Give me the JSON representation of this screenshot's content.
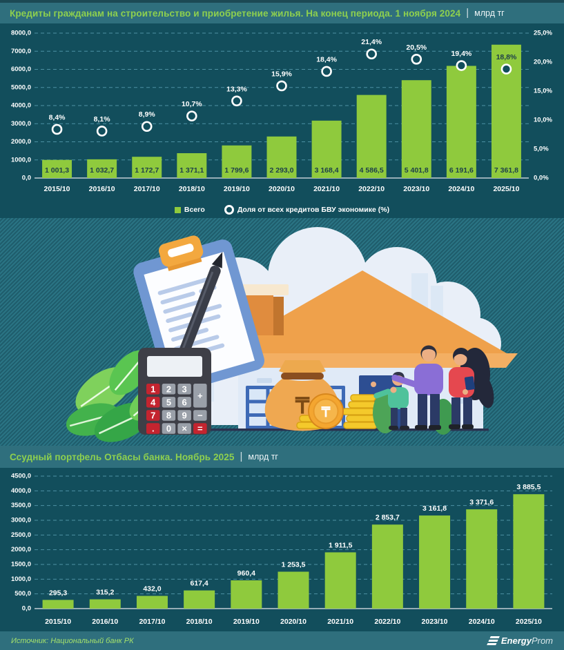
{
  "header": {
    "title": "Кредиты гражданам на строительство и приобретение жилья. На конец периода. 1 ноября 2024",
    "separator": "|",
    "unit": "млрд тг"
  },
  "section2": {
    "title": "Ссудный портфель Отбасы банка. Ноябрь 2025",
    "separator": "|",
    "unit": "млрд тг"
  },
  "legend": {
    "bars": "Всего",
    "markers": "Доля от всех кредитов БВУ экономике (%)"
  },
  "footer": {
    "source": "Источник: Национальный банк РК",
    "brand_bold": "Energy",
    "brand_light": "Prom"
  },
  "colors": {
    "bar": "#8fca3d",
    "bar_label_dark": "#1c3e4a",
    "label_white": "#ffffff",
    "grid": "#4d91a3",
    "axis_line": "#c3ced3",
    "marker_fill": "#124e5c",
    "marker_stroke": "#ffffff",
    "background": "#124e5c",
    "title_green": "#8ed04e"
  },
  "chart_data": [
    {
      "type": "bar",
      "title": "Кредиты гражданам на строительство и приобретение жилья. На конец периода. 1 ноября 2024, млрд тг",
      "categories": [
        "2015/10",
        "2016/10",
        "2017/10",
        "2018/10",
        "2019/10",
        "2020/10",
        "2021/10",
        "2022/10",
        "2023/10",
        "2024/10",
        "2025/10"
      ],
      "series": [
        {
          "name": "Всего",
          "type": "bar",
          "values": [
            1001.3,
            1032.7,
            1172.7,
            1371.1,
            1799.6,
            2293.0,
            3168.4,
            4586.5,
            5401.8,
            6191.6,
            7361.8
          ],
          "labels": [
            "1 001,3",
            "1 032,7",
            "1 172,7",
            "1 371,1",
            "1 799,6",
            "2 293,0",
            "3 168,4",
            "4 586,5",
            "5 401,8",
            "6 191,6",
            "7 361,8"
          ]
        },
        {
          "name": "Доля от всех кредитов БВУ экономике (%)",
          "type": "scatter",
          "values": [
            8.4,
            8.1,
            8.9,
            10.7,
            13.3,
            15.9,
            18.4,
            21.4,
            20.5,
            19.4,
            18.8
          ],
          "labels": [
            "8,4%",
            "8,1%",
            "8,9%",
            "10,7%",
            "13,3%",
            "15,9%",
            "18,4%",
            "21,4%",
            "20,5%",
            "19,4%",
            "18,8%"
          ]
        }
      ],
      "y_left": {
        "min": 0,
        "max": 8000,
        "step": 1000,
        "suffix": ""
      },
      "y_right": {
        "min": 0,
        "max": 25,
        "step": 5,
        "suffix": "%"
      },
      "grid": true,
      "legend_position": "bottom",
      "bar_labels_inside": true
    },
    {
      "type": "bar",
      "title": "Ссудный портфель Отбасы банка. Ноябрь 2025, млрд тг",
      "categories": [
        "2015/10",
        "2016/10",
        "2017/10",
        "2018/10",
        "2019/10",
        "2020/10",
        "2021/10",
        "2022/10",
        "2023/10",
        "2024/10",
        "2025/10"
      ],
      "series": [
        {
          "name": "Ссудный портфель",
          "type": "bar",
          "values": [
            295.3,
            315.2,
            432.0,
            617.4,
            960.4,
            1253.5,
            1911.5,
            2853.7,
            3161.8,
            3371.6,
            3885.5
          ],
          "labels": [
            "295,3",
            "315,2",
            "432,0",
            "617,4",
            "960,4",
            "1 253,5",
            "1 911,5",
            "2 853,7",
            "3 161,8",
            "3 371,6",
            "3 885,5"
          ]
        }
      ],
      "y_left": {
        "min": 0,
        "max": 4500,
        "step": 500,
        "suffix": ""
      },
      "grid": true,
      "legend_position": "none",
      "bar_labels_inside": false
    }
  ],
  "illustration": {
    "name": "house-loan-illustration",
    "currency_symbol": "₸",
    "calculator_keys": [
      "1",
      "2",
      "3",
      "4",
      "5",
      "6",
      "7",
      "8",
      "9",
      ".",
      "0",
      "×"
    ],
    "calculator_ops": [
      "+",
      "−",
      "="
    ],
    "red_keys": [
      "1",
      "4",
      "7",
      ".",
      "="
    ]
  }
}
